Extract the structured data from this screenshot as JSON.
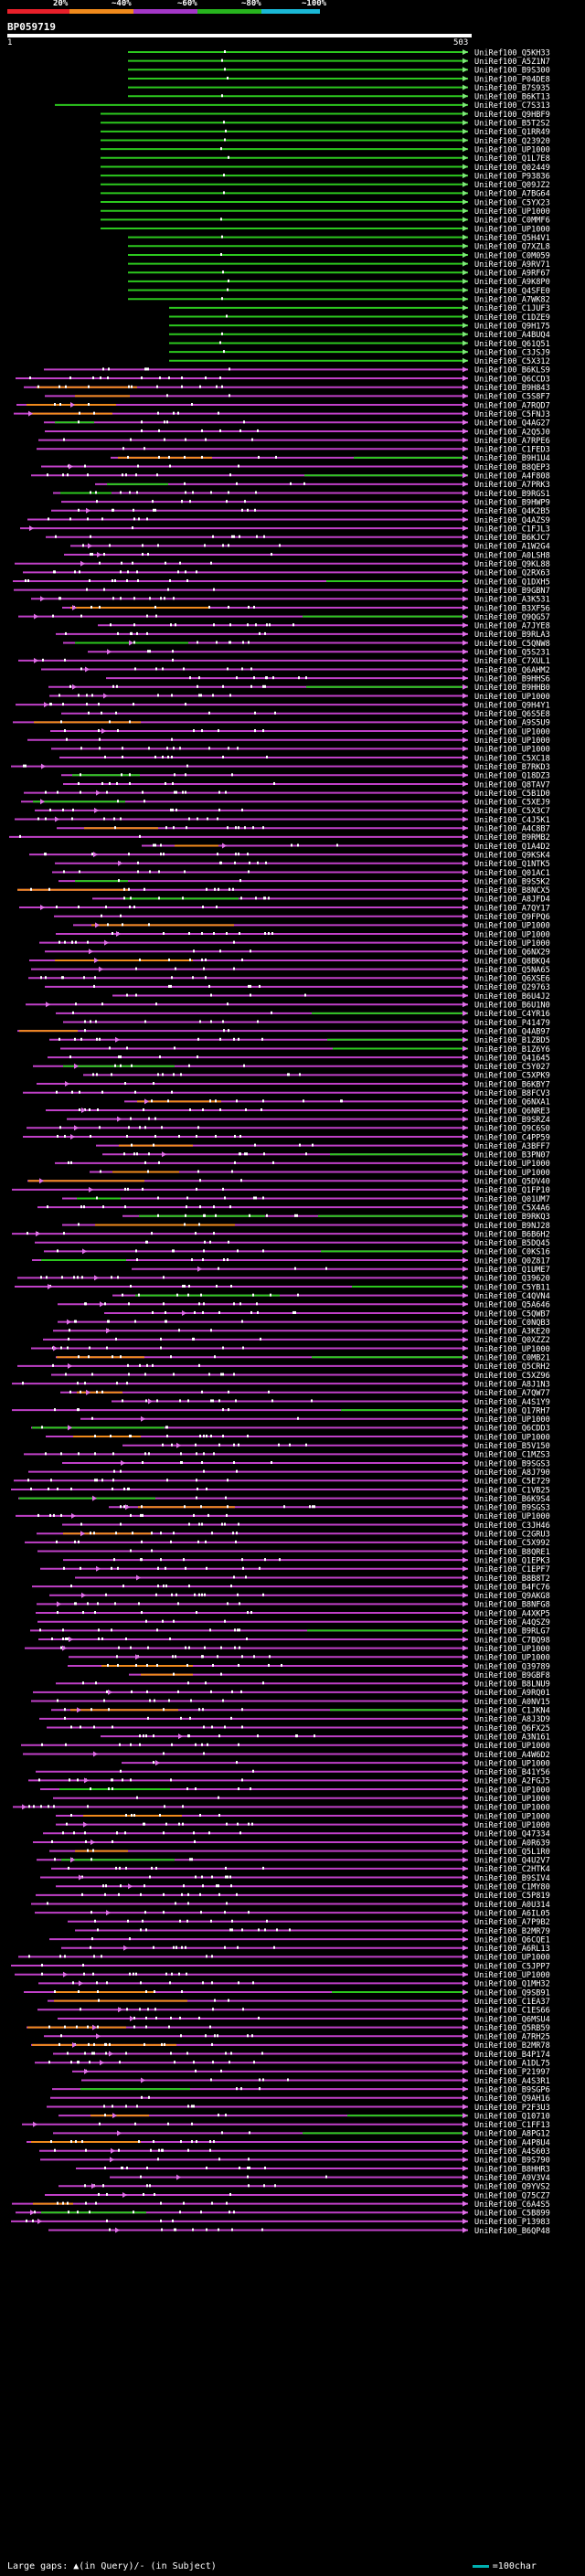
{
  "scale": {
    "labels": [
      "20%",
      "~40%",
      "~60%",
      "~80%",
      "~100%"
    ],
    "colors": [
      "#e8202a",
      "#f08a1c",
      "#a437c8",
      "#27b41e",
      "#1ab8d6"
    ]
  },
  "query": {
    "id": "BP059719",
    "start": "1",
    "end": "503"
  },
  "palette": {
    "magenta": "#c040c8",
    "green": "#2cc81e",
    "orange": "#f08a1c",
    "cyan": "#00b0b0",
    "marker": "#ffffff"
  },
  "hits": [
    "UniRef100_Q5KH33",
    "UniRef100_A5Z1N7",
    "UniRef100_B9S300",
    "UniRef100_P04DE8",
    "UniRef100_B7S935",
    "UniRef100_B6KT13",
    "UniRef100_C7S313",
    "UniRef100_Q9HBF9",
    "UniRef100_B5T2S2",
    "UniRef100_Q1RR49",
    "UniRef100_Q23920",
    "UniRef100_UP1000",
    "UniRef100_Q1L7E8",
    "UniRef100_Q02449",
    "UniRef100_P93836",
    "UniRef100_Q09JZ2",
    "UniRef100_A7BG64",
    "UniRef100_C5YX23",
    "UniRef100_UP1000",
    "UniRef100_C0MMF6",
    "UniRef100_UP1000",
    "UniRef100_Q5H4V1",
    "UniRef100_Q7XZL8",
    "UniRef100_C0M059",
    "UniRef100_A9RV71",
    "UniRef100_A9RF67",
    "UniRef100_A9K8P0",
    "UniRef100_Q4SFE0",
    "UniRef100_A7WK82",
    "UniRef100_C1JUF3",
    "UniRef100_C1DZE9",
    "UniRef100_Q9H175",
    "UniRef100_A4BUQ4",
    "UniRef100_Q61Q51",
    "UniRef100_C3JSJ9",
    "UniRef100_C5X312",
    "UniRef100_B6KLS9",
    "UniRef100_Q6CCD3",
    "UniRef100_B9H843",
    "UniRef100_C5S8F7",
    "UniRef100_A7RQD7",
    "UniRef100_C5FNJ3",
    "UniRef100_Q4AG27",
    "UniRef100_A2Q5J0",
    "UniRef100_A7RPE6",
    "UniRef100_C1FED3",
    "UniRef100_B9H1U4",
    "UniRef100_B8QEP3",
    "UniRef100_A4F808",
    "UniRef100_A7PRK3",
    "UniRef100_B9RGS1",
    "UniRef100_B9HWP9",
    "UniRef100_Q4K2B5",
    "UniRef100_Q4AZS9",
    "UniRef100_C1FJL3",
    "UniRef100_B6KJC7",
    "UniRef100_A1W2G4",
    "UniRef100_A0LSH8",
    "UniRef100_Q9KL88",
    "UniRef100_Q2RX63",
    "UniRef100_Q1DXH5",
    "UniRef100_B9GBN7",
    "UniRef100_A3K531",
    "UniRef100_B3XF56",
    "UniRef100_Q9QG57",
    "UniRef100_A7JYE8",
    "UniRef100_B9RLA3",
    "UniRef100_C5QNW8",
    "UniRef100_Q5S231",
    "UniRef100_C7XUL1",
    "UniRef100_Q6AHM2",
    "UniRef100_B9HHS6",
    "UniRef100_B9HHB0",
    "UniRef100_UP1000",
    "UniRef100_Q9H4Y1",
    "UniRef100_Q6S5E8",
    "UniRef100_A9S5U9",
    "UniRef100_UP1000",
    "UniRef100_UP1000",
    "UniRef100_UP1000",
    "UniRef100_C5XC18",
    "UniRef100_B7RKD3",
    "UniRef100_Q18DZ3",
    "UniRef100_Q8TAV7",
    "UniRef100_C5B1D0",
    "UniRef100_C5XEJ9",
    "UniRef100_C5X3C7",
    "UniRef100_C4J5K1",
    "UniRef100_A4C8B7",
    "UniRef100_B9RMB2",
    "UniRef100_Q1A4D2",
    "UniRef100_Q9KSK4",
    "UniRef100_Q1NTK5",
    "UniRef100_Q01AC1",
    "UniRef100_B9S5K2",
    "UniRef100_B8NCX5",
    "UniRef100_A8JFD4",
    "UniRef100_A7QY17",
    "UniRef100_Q9FPQ6",
    "UniRef100_UP1000",
    "UniRef100_UP1000",
    "UniRef100_UP1000",
    "UniRef100_Q6NX29",
    "UniRef100_Q8BKQ4",
    "UniRef100_Q5NA65",
    "UniRef100_Q6XSE6",
    "UniRef100_Q29763",
    "UniRef100_B6U4J2",
    "UniRef100_B6U1N0",
    "UniRef100_C4YR16",
    "UniRef100_P41479",
    "UniRef100_Q4AB97",
    "UniRef100_B1ZBD5",
    "UniRef100_B1Z6Y6",
    "UniRef100_Q41645",
    "UniRef100_C5Y027",
    "UniRef100_C5XPK9",
    "UniRef100_B6KBY7",
    "UniRef100_B8FCV3",
    "UniRef100_Q6NXA1",
    "UniRef100_Q6NRE3",
    "UniRef100_B9SRZ4",
    "UniRef100_Q9C6S0",
    "UniRef100_C4PP59",
    "UniRef100_A3BFF7",
    "UniRef100_B3PN07",
    "UniRef100_UP1000",
    "UniRef100_UP1000",
    "UniRef100_Q5DV40",
    "UniRef100_Q1FP10",
    "UniRef100_Q01UM7",
    "UniRef100_C5X4A6",
    "UniRef100_B9RKQ3",
    "UniRef100_B9NJ28",
    "UniRef100_B6B6H2",
    "UniRef100_B5DQ45",
    "UniRef100_C0KS16",
    "UniRef100_Q0Z817",
    "UniRef100_Q1UME7",
    "UniRef100_Q39620",
    "UniRef100_C5YB11",
    "UniRef100_C4QVN4",
    "UniRef100_Q5A646",
    "UniRef100_C5QWB7",
    "UniRef100_C0NQB3",
    "UniRef100_A3KE20",
    "UniRef100_Q0XZZ2",
    "UniRef100_UP1000",
    "UniRef100_C0MB21",
    "UniRef100_Q5CRH2",
    "UniRef100_C5XZ96",
    "UniRef100_A8J1N3",
    "UniRef100_A7QW77",
    "UniRef100_A4S1Y9",
    "UniRef100_Q17RH7",
    "UniRef100_UP1000",
    "UniRef100_Q6CDD3",
    "UniRef100_UP1000",
    "UniRef100_B5V150",
    "UniRef100_C1MZS3",
    "UniRef100_B9SGS3",
    "UniRef100_A8J790",
    "UniRef100_C5E729",
    "UniRef100_C1VB25",
    "UniRef100_B6K9S4",
    "UniRef100_B9SGS3",
    "UniRef100_UP1000",
    "UniRef100_C3JH46",
    "UniRef100_C2GRU3",
    "UniRef100_C5X992",
    "UniRef100_B8QRE1",
    "UniRef100_Q1EPK3",
    "UniRef100_C1EPF7",
    "UniRef100_B8B8T2",
    "UniRef100_B4FC76",
    "UniRef100_Q9AKG8",
    "UniRef100_B8NFG8",
    "UniRef100_A4XKP5",
    "UniRef100_A4QSZ9",
    "UniRef100_B9RLG7",
    "UniRef100_C7BQ98",
    "UniRef100_UP1000",
    "UniRef100_UP1000",
    "UniRef100_Q39789",
    "UniRef100_B9GBF8",
    "UniRef100_B8LNU9",
    "UniRef100_A9RQ01",
    "UniRef100_A0NV15",
    "UniRef100_C1JKN4",
    "UniRef100_A8J3D9",
    "UniRef100_Q6FX25",
    "UniRef100_A3N161",
    "UniRef100_UP1000",
    "UniRef100_A4W6D2",
    "UniRef100_UP1000",
    "UniRef100_B41Y56",
    "UniRef100_A2FGJ5",
    "UniRef100_UP1000",
    "UniRef100_UP1000",
    "UniRef100_UP1000",
    "UniRef100_UP1000",
    "UniRef100_UP1000",
    "UniRef100_Q47334",
    "UniRef100_A0R639",
    "UniRef100_Q5L1R0",
    "UniRef100_Q4U2V7",
    "UniRef100_C2HTK4",
    "UniRef100_B9SIV4",
    "UniRef100_C1MY80",
    "UniRef100_C5P819",
    "UniRef100_A0U314",
    "UniRef100_A6IL05",
    "UniRef100_A7P9B2",
    "UniRef100_B2MR79",
    "UniRef100_Q6CQE1",
    "UniRef100_A6RL13",
    "UniRef100_UP1000",
    "UniRef100_C5JPP7",
    "UniRef100_UP1000",
    "UniRef100_Q1MH32",
    "UniRef100_Q9SB91",
    "UniRef100_C1EA37",
    "UniRef100_C1ES66",
    "UniRef100_Q6MSU4",
    "UniRef100_Q5RB59",
    "UniRef100_A7RH25",
    "UniRef100_B2MR78",
    "UniRef100_B4P174",
    "UniRef100_A1DL75",
    "UniRef100_P21997",
    "UniRef100_A4S3R1",
    "UniRef100_B9SGP6",
    "UniRef100_Q9AH16",
    "UniRef100_P2F3U3",
    "UniRef100_Q10710",
    "UniRef100_C1FF13",
    "UniRef100_A8PG12",
    "UniRef100_A4P8U4",
    "UniRef100_A4S603",
    "UniRef100_B9S790",
    "UniRef100_B8HHR3",
    "UniRef100_A9V3V4",
    "UniRef100_Q9YVS2",
    "UniRef100_Q75CZ7",
    "UniRef100_C6A4S5",
    "UniRef100_C5B899",
    "UniRef100_P13983",
    "UniRef100_B6QP48"
  ],
  "legend": {
    "text": "Large gaps: ▲(in Query)/- (in Subject)",
    "swatch_label": "=100char"
  }
}
